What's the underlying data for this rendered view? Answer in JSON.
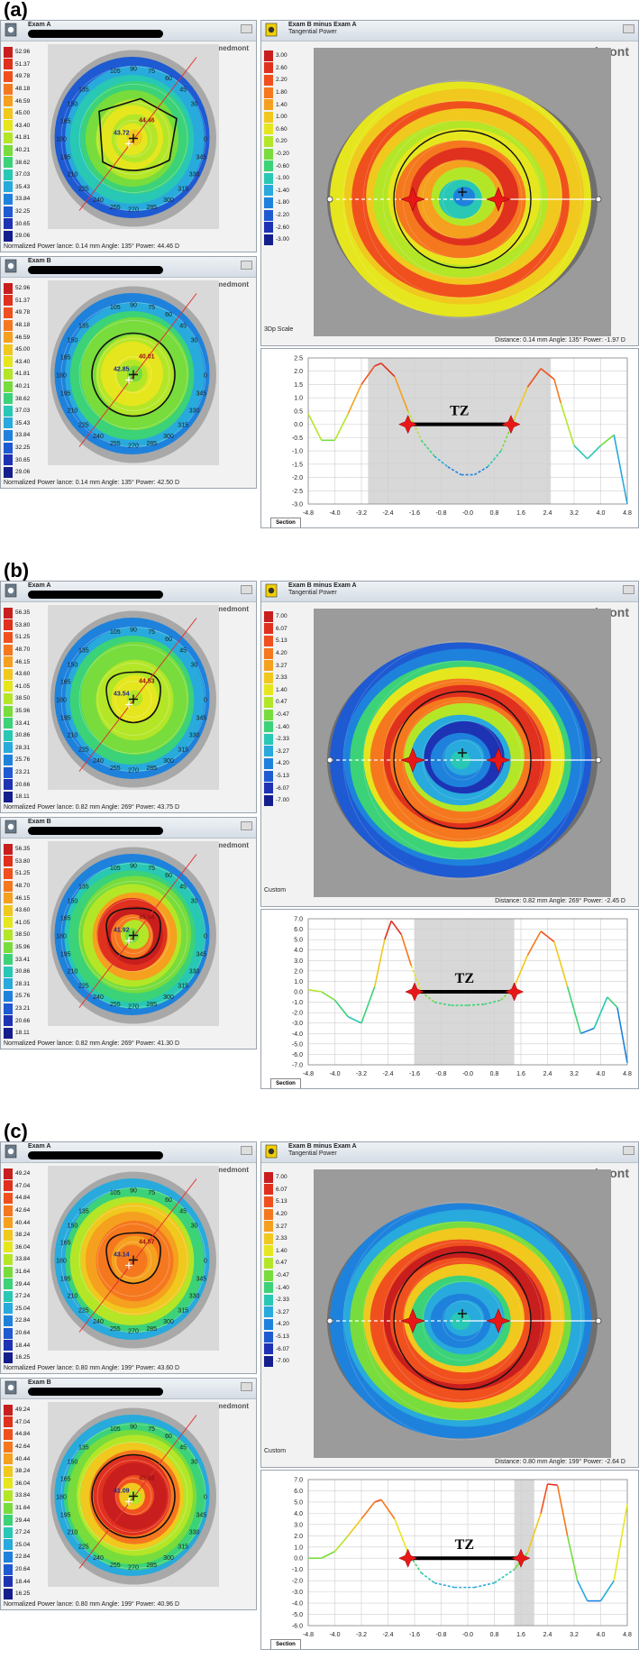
{
  "scales": {
    "a_abs": [
      "52.96",
      "51.37",
      "49.78",
      "48.18",
      "46.59",
      "45.00",
      "43.40",
      "41.81",
      "40.21",
      "38.62",
      "37.03",
      "35.43",
      "33.84",
      "32.25",
      "30.65",
      "29.06"
    ],
    "a_diff": [
      "3.00",
      "2.60",
      "2.20",
      "1.80",
      "1.40",
      "1.00",
      "0.60",
      "0.20",
      "-0.20",
      "-0.60",
      "-1.00",
      "-1.40",
      "-1.80",
      "-2.20",
      "-2.60",
      "-3.00"
    ],
    "b_abs": [
      "56.35",
      "53.80",
      "51.25",
      "48.70",
      "46.15",
      "43.60",
      "41.05",
      "38.50",
      "35.96",
      "33.41",
      "30.86",
      "28.31",
      "25.76",
      "23.21",
      "20.66",
      "18.11"
    ],
    "bc_diff": [
      "7.00",
      "6.07",
      "5.13",
      "4.20",
      "3.27",
      "2.33",
      "1.40",
      "0.47",
      "-0.47",
      "-1.40",
      "-2.33",
      "-3.27",
      "-4.20",
      "-5.13",
      "-6.07",
      "-7.00"
    ],
    "c_abs": [
      "49.24",
      "47.04",
      "44.84",
      "42.64",
      "40.44",
      "38.24",
      "36.04",
      "33.84",
      "31.64",
      "29.44",
      "27.24",
      "25.04",
      "22.84",
      "20.64",
      "18.44",
      "16.25"
    ],
    "colors": [
      "#c81e1e",
      "#e0301e",
      "#f0501e",
      "#f5781e",
      "#f5a01e",
      "#f0c81e",
      "#e6e61e",
      "#b4e628",
      "#78dc3c",
      "#3cd278",
      "#28c8b4",
      "#28aadc",
      "#1e82dc",
      "#1e5ad2",
      "#1e32b4",
      "#141e8c"
    ]
  },
  "angles": [
    "105",
    "90",
    "75",
    "60",
    "45",
    "30",
    "135",
    "150",
    "165",
    "180",
    "195",
    "210",
    "225",
    "240",
    "255",
    "270",
    "285",
    "300",
    "315",
    "330",
    "345",
    "0"
  ],
  "figures": [
    {
      "label": "(a)",
      "left_top": {
        "title": "Exam A",
        "footer": "Normalized Power lance: 0.14 mm  Angle: 135°  Power: 44.46 D",
        "center_vals": [
          "43.72",
          "44.46"
        ]
      },
      "left_bottom": {
        "title": "Exam B",
        "footer": "Normalized Power lance: 0.14 mm  Angle: 135°  Power: 42.50 D",
        "center_vals": [
          "42.85",
          "40.01"
        ]
      },
      "right": {
        "title": "Exam B minus Exam A",
        "subtitle": "Tangential Power",
        "scale_name": "3Dp Scale",
        "footer": "Distance: 0.14 mm  Angle: 135°  Power: -1.97 D"
      },
      "profile": {
        "y_ticks": [
          "2.5",
          "2.0",
          "1.5",
          "1.0",
          "0.5",
          "0.0",
          "-0.5",
          "-1.0",
          "-1.5",
          "-2.0",
          "-2.5",
          "-3.0"
        ],
        "x_ticks": [
          "-4.8",
          "-4.0",
          "-3.2",
          "-2.4",
          "-1.6",
          "-0.8",
          "-0.0",
          "0.8",
          "1.6",
          "2.4",
          "3.2",
          "4.0",
          "4.8"
        ],
        "ymin": -3.0,
        "ymax": 2.5,
        "tz_label": "TZ",
        "tab": "Section"
      }
    },
    {
      "label": "(b)",
      "left_top": {
        "title": "Exam A",
        "footer": "Normalized Power lance: 0.82 mm  Angle: 269°  Power: 43.75 D",
        "center_vals": [
          "43.54",
          "44.53"
        ]
      },
      "left_bottom": {
        "title": "Exam B",
        "footer": "Normalized Power lance: 0.82 mm  Angle: 269°  Power: 41.30 D",
        "center_vals": [
          "41.92",
          "45.84"
        ]
      },
      "right": {
        "title": "Exam B minus Exam A",
        "subtitle": "Tangential Power",
        "scale_name": "Custom",
        "footer": "Distance: 0.82 mm  Angle: 269°  Power: -2.45 D"
      },
      "profile": {
        "y_ticks": [
          "7.0",
          "6.0",
          "5.0",
          "4.0",
          "3.0",
          "2.0",
          "1.0",
          "0.0",
          "-1.0",
          "-2.0",
          "-3.0",
          "-4.0",
          "-5.0",
          "-6.0",
          "-7.0"
        ],
        "x_ticks": [
          "-4.8",
          "-4.0",
          "-3.2",
          "-2.4",
          "-1.6",
          "-0.8",
          "-0.0",
          "0.8",
          "1.6",
          "2.4",
          "3.2",
          "4.0",
          "4.8"
        ],
        "ymin": -7.0,
        "ymax": 7.0,
        "tz_label": "TZ",
        "tab": "Section"
      }
    },
    {
      "label": "(c)",
      "left_top": {
        "title": "Exam A",
        "footer": "Normalized Power lance: 0.80 mm  Angle: 199°  Power: 43.60 D",
        "center_vals": [
          "43.14",
          "44.57"
        ]
      },
      "left_bottom": {
        "title": "Exam B",
        "footer": "Normalized Power lance: 0.80 mm  Angle: 199°  Power: 40.96 D",
        "center_vals": [
          "41.09",
          "45.92"
        ]
      },
      "right": {
        "title": "Exam B minus Exam A",
        "subtitle": "Tangential Power",
        "scale_name": "Custom",
        "footer": "Distance: 0.80 mm  Angle: 199°  Power: -2.64 D"
      },
      "profile": {
        "y_ticks": [
          "7.0",
          "6.0",
          "5.0",
          "4.0",
          "3.0",
          "2.0",
          "1.0",
          "0.0",
          "-1.0",
          "-2.0",
          "-3.0",
          "-4.0",
          "-5.0",
          "-6.0"
        ],
        "x_ticks": [
          "-4.8",
          "-4.0",
          "-3.2",
          "-2.4",
          "-1.6",
          "-0.8",
          "-0.0",
          "0.8",
          "1.6",
          "2.4",
          "3.2",
          "4.0",
          "4.8"
        ],
        "ymin": -6.0,
        "ymax": 7.0,
        "tz_label": "TZ",
        "tab": "Section"
      }
    }
  ],
  "brand": "medmont"
}
